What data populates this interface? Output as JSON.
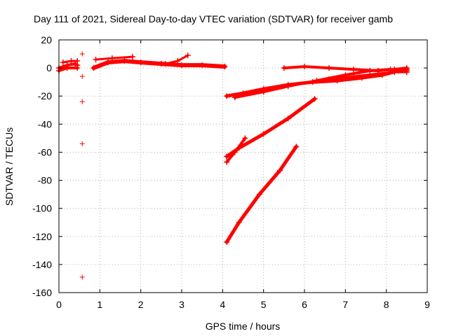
{
  "chart_data": {
    "type": "scatter",
    "title": "Day 111 of 2021, Sidereal Day-to-day VTEC variation (SDTVAR) for receiver gamb",
    "xlabel": "GPS time / hours",
    "ylabel": "SDTVAR / TECUs",
    "xlim": [
      0,
      9
    ],
    "ylim": [
      -160,
      20
    ],
    "xticks": [
      0,
      1,
      2,
      3,
      4,
      5,
      6,
      7,
      8,
      9
    ],
    "yticks": [
      20,
      0,
      -20,
      -40,
      -60,
      -80,
      -100,
      -120,
      -140,
      -160
    ],
    "grid": true,
    "marker": "+",
    "color": "#ff0000",
    "series": [
      {
        "name": "arc-early-a",
        "x": [
          0.0,
          0.2,
          0.4,
          0.45
        ],
        "y": [
          0,
          2,
          3,
          2
        ],
        "width": 4
      },
      {
        "name": "arc-early-b",
        "x": [
          0.0,
          0.2,
          0.45
        ],
        "y": [
          -2,
          0,
          0
        ],
        "width": 4
      },
      {
        "name": "arc-early-c",
        "x": [
          0.1,
          0.3,
          0.45
        ],
        "y": [
          4,
          5,
          5
        ],
        "width": 3
      },
      {
        "name": "arc-1",
        "x": [
          0.85,
          1.2,
          1.6,
          2.0,
          2.5,
          3.0,
          3.5,
          4.05
        ],
        "y": [
          0,
          4,
          5,
          4,
          3,
          2,
          2,
          1
        ],
        "width": 6
      },
      {
        "name": "arc-2",
        "x": [
          0.9,
          1.3,
          1.8
        ],
        "y": [
          6,
          7,
          8
        ],
        "width": 3
      },
      {
        "name": "arc-3",
        "x": [
          2.6,
          2.9,
          3.15
        ],
        "y": [
          3,
          5,
          9
        ],
        "width": 3
      },
      {
        "name": "arc-4",
        "x": [
          4.1,
          4.5,
          5.0,
          5.6,
          6.2,
          6.8,
          7.4,
          7.9,
          8.3,
          8.5
        ],
        "y": [
          -20,
          -18,
          -15,
          -12,
          -10,
          -9,
          -7,
          -5,
          -2,
          -1
        ],
        "width": 5
      },
      {
        "name": "arc-5",
        "x": [
          4.3,
          5.0,
          5.6,
          6.3,
          7.0,
          7.6,
          8.1,
          8.5
        ],
        "y": [
          -21,
          -17,
          -13,
          -9,
          -5,
          -2,
          -1,
          -2
        ],
        "width": 4
      },
      {
        "name": "arc-6",
        "x": [
          5.5,
          6.0,
          6.6,
          7.2,
          7.8,
          8.2,
          8.5
        ],
        "y": [
          0,
          1,
          0,
          -1,
          -2,
          -1,
          0
        ],
        "width": 4
      },
      {
        "name": "arc-7",
        "x": [
          6.6,
          7.2,
          7.8,
          8.2,
          8.5
        ],
        "y": [
          -8,
          -6,
          -4,
          -3,
          -3
        ],
        "width": 3
      },
      {
        "name": "arc-8",
        "x": [
          4.1,
          4.4,
          5.0,
          5.6,
          6.25
        ],
        "y": [
          -63,
          -57,
          -47,
          -36,
          -22
        ],
        "width": 5
      },
      {
        "name": "arc-9",
        "x": [
          4.1,
          4.3,
          4.55
        ],
        "y": [
          -67,
          -60,
          -50
        ],
        "width": 4
      },
      {
        "name": "arc-10",
        "x": [
          4.1,
          4.4,
          4.9,
          5.4,
          5.8
        ],
        "y": [
          -124,
          -110,
          -90,
          -73,
          -56
        ],
        "width": 5
      }
    ],
    "outliers": [
      {
        "x": 0.57,
        "y": 10
      },
      {
        "x": 0.57,
        "y": -6
      },
      {
        "x": 0.57,
        "y": -24
      },
      {
        "x": 0.57,
        "y": -54
      },
      {
        "x": 0.57,
        "y": -149
      }
    ]
  }
}
